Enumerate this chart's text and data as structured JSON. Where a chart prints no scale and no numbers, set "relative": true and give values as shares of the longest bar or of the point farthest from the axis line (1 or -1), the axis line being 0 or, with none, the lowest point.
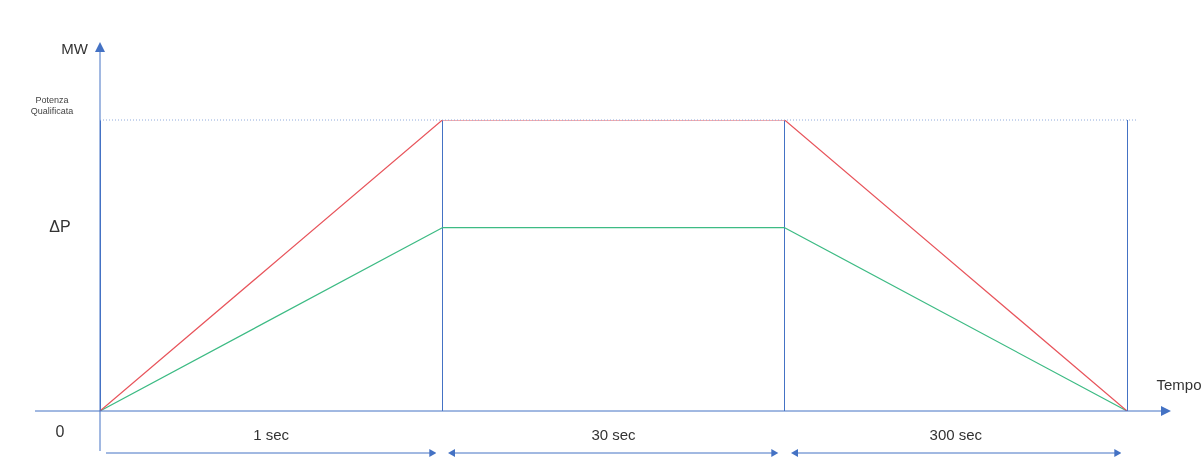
{
  "chart_data": {
    "type": "line",
    "relative": true,
    "xlabel": "Tempo",
    "ylabel": "MW",
    "tick_labels": false,
    "categories": [
      null,
      null,
      null,
      null
    ],
    "series": [
      {
        "color": "#e8555c",
        "values": [
          0,
          1,
          1,
          0
        ]
      },
      {
        "color": "#3dbb84",
        "values": [
          0,
          0.63,
          0.63,
          0
        ]
      }
    ],
    "ref_lines": [
      {
        "axis": "y",
        "value": 1,
        "label": "Potenza Qualificata",
        "color": "#8faadc",
        "line_style": "dotted"
      }
    ],
    "grid": "x",
    "annotations": [
      "ΔP",
      "0",
      "1 sec",
      "30 sec",
      "300 sec"
    ]
  }
}
